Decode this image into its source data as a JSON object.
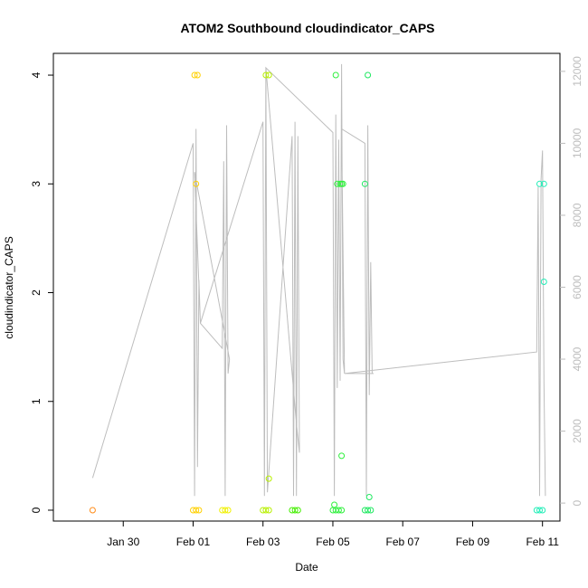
{
  "chart_data": {
    "type": "scatter",
    "title": "ATOM2 Southbound cloudindicator_CAPS",
    "xlabel": "Date",
    "ylabel": "cloudindicator_CAPS",
    "x_axis_type": "date",
    "xlim": [
      "2024-01-28T00:00",
      "2024-02-11T12:00"
    ],
    "x_ticks": [
      {
        "date": "2024-01-30",
        "label": "Jan 30"
      },
      {
        "date": "2024-02-01",
        "label": "Feb 01"
      },
      {
        "date": "2024-02-03",
        "label": "Feb 03"
      },
      {
        "date": "2024-02-05",
        "label": "Feb 05"
      },
      {
        "date": "2024-02-07",
        "label": "Feb 07"
      },
      {
        "date": "2024-02-09",
        "label": "Feb 09"
      },
      {
        "date": "2024-02-11",
        "label": "Feb 11"
      }
    ],
    "ylim": [
      -0.1,
      4.2
    ],
    "y_ticks": [
      0,
      1,
      2,
      3,
      4
    ],
    "y2_ticks": [
      0,
      2000,
      4000,
      6000,
      8000,
      10000,
      12000
    ],
    "y2lim": [
      -500,
      12500
    ],
    "grid": false,
    "points": [
      {
        "x": "2024-01-29T03:00",
        "y": 0,
        "color": "#ff8c1a"
      },
      {
        "x": "2024-02-01T00:00",
        "y": 0,
        "color": "#ffd000"
      },
      {
        "x": "2024-02-01T02:00",
        "y": 0,
        "color": "#ffd000"
      },
      {
        "x": "2024-02-01T04:00",
        "y": 0,
        "color": "#ffd000"
      },
      {
        "x": "2024-02-01T01:00",
        "y": 4,
        "color": "#ffd000"
      },
      {
        "x": "2024-02-01T03:00",
        "y": 4,
        "color": "#ffd000"
      },
      {
        "x": "2024-02-01T02:00",
        "y": 3,
        "color": "#ffd000"
      },
      {
        "x": "2024-02-01T20:00",
        "y": 0,
        "color": "#f0f000"
      },
      {
        "x": "2024-02-01T22:00",
        "y": 0,
        "color": "#f0f000"
      },
      {
        "x": "2024-02-02T00:00",
        "y": 0,
        "color": "#f0f000"
      },
      {
        "x": "2024-02-03T00:00",
        "y": 0,
        "color": "#b8f000"
      },
      {
        "x": "2024-02-03T02:00",
        "y": 0,
        "color": "#b8f000"
      },
      {
        "x": "2024-02-03T04:00",
        "y": 0,
        "color": "#b8f000"
      },
      {
        "x": "2024-02-03T02:00",
        "y": 4,
        "color": "#b8f000"
      },
      {
        "x": "2024-02-03T04:00",
        "y": 4,
        "color": "#b8f000"
      },
      {
        "x": "2024-02-03T04:00",
        "y": 0.29,
        "color": "#b8f000"
      },
      {
        "x": "2024-02-03T20:00",
        "y": 0,
        "color": "#44ee00"
      },
      {
        "x": "2024-02-03T22:00",
        "y": 0,
        "color": "#44ee00"
      },
      {
        "x": "2024-02-04T00:00",
        "y": 0,
        "color": "#44ee00"
      },
      {
        "x": "2024-02-05T00:00",
        "y": 0,
        "color": "#2ef03c"
      },
      {
        "x": "2024-02-05T02:00",
        "y": 0,
        "color": "#2ef03c"
      },
      {
        "x": "2024-02-05T04:00",
        "y": 0,
        "color": "#2ef03c"
      },
      {
        "x": "2024-02-05T06:00",
        "y": 0,
        "color": "#2ef03c"
      },
      {
        "x": "2024-02-05T01:00",
        "y": 0.05,
        "color": "#2ef03c"
      },
      {
        "x": "2024-02-05T02:00",
        "y": 4,
        "color": "#2ef03c"
      },
      {
        "x": "2024-02-05T03:00",
        "y": 3,
        "color": "#2ef03c"
      },
      {
        "x": "2024-02-05T05:00",
        "y": 3,
        "color": "#2ef03c"
      },
      {
        "x": "2024-02-05T06:00",
        "y": 3,
        "color": "#2ef03c"
      },
      {
        "x": "2024-02-05T07:00",
        "y": 3,
        "color": "#2ef03c"
      },
      {
        "x": "2024-02-05T06:00",
        "y": 0.5,
        "color": "#2ef03c"
      },
      {
        "x": "2024-02-05T22:00",
        "y": 0,
        "color": "#1ee860"
      },
      {
        "x": "2024-02-06T00:00",
        "y": 0,
        "color": "#1ee860"
      },
      {
        "x": "2024-02-06T02:00",
        "y": 0,
        "color": "#1ee860"
      },
      {
        "x": "2024-02-05T22:00",
        "y": 3,
        "color": "#1ee860"
      },
      {
        "x": "2024-02-06T00:00",
        "y": 4,
        "color": "#1ee860"
      },
      {
        "x": "2024-02-06T01:00",
        "y": 0.12,
        "color": "#1ee860"
      },
      {
        "x": "2024-02-10T20:00",
        "y": 0,
        "color": "#22eeb8"
      },
      {
        "x": "2024-02-10T22:00",
        "y": 0,
        "color": "#22eeb8"
      },
      {
        "x": "2024-02-11T00:00",
        "y": 0,
        "color": "#22eeb8"
      },
      {
        "x": "2024-02-10T22:00",
        "y": 3,
        "color": "#22eeb8"
      },
      {
        "x": "2024-02-11T01:00",
        "y": 3,
        "color": "#22eeb8"
      },
      {
        "x": "2024-02-11T01:00",
        "y": 2.1,
        "color": "#22eeb8"
      }
    ],
    "secondary_line": {
      "axis": "right",
      "color": "#bdbdbd",
      "points": [
        [
          "2024-01-29T03:00",
          700
        ],
        [
          "2024-02-01T00:00",
          10000
        ],
        [
          "2024-02-01T01:00",
          200
        ],
        [
          "2024-02-01T02:00",
          10400
        ],
        [
          "2024-02-01T03:00",
          1000
        ],
        [
          "2024-02-01T04:00",
          6200
        ],
        [
          "2024-02-01T05:00",
          5000
        ],
        [
          "2024-02-01T20:00",
          4300
        ],
        [
          "2024-02-01T21:00",
          9500
        ],
        [
          "2024-02-01T22:00",
          200
        ],
        [
          "2024-02-01T23:00",
          10500
        ],
        [
          "2024-02-02T00:00",
          3600
        ],
        [
          "2024-02-02T01:00",
          4000
        ],
        [
          "2024-02-01T01:00",
          9200
        ],
        [
          "2024-02-01T05:00",
          5000
        ],
        [
          "2024-02-03T00:00",
          10600
        ],
        [
          "2024-02-03T01:00",
          200
        ],
        [
          "2024-02-03T02:00",
          12100
        ],
        [
          "2024-02-03T03:00",
          300
        ],
        [
          "2024-02-03T20:00",
          10200
        ],
        [
          "2024-02-03T21:00",
          200
        ],
        [
          "2024-02-03T22:00",
          10600
        ],
        [
          "2024-02-03T23:00",
          200
        ],
        [
          "2024-02-04T00:00",
          10200
        ],
        [
          "2024-02-04T01:00",
          1400
        ],
        [
          "2024-02-03T23:00",
          2200
        ],
        [
          "2024-02-03T02:00",
          12100
        ],
        [
          "2024-02-05T00:00",
          10300
        ],
        [
          "2024-02-05T01:00",
          200
        ],
        [
          "2024-02-05T02:00",
          10800
        ],
        [
          "2024-02-05T03:00",
          3200
        ],
        [
          "2024-02-05T04:00",
          10100
        ],
        [
          "2024-02-05T05:00",
          3400
        ],
        [
          "2024-02-05T06:00",
          12200
        ],
        [
          "2024-02-05T07:00",
          4000
        ],
        [
          "2024-02-05T08:00",
          3600
        ],
        [
          "2024-02-05T06:00",
          10400
        ],
        [
          "2024-02-05T22:00",
          10000
        ],
        [
          "2024-02-05T23:00",
          200
        ],
        [
          "2024-02-06T00:00",
          10500
        ],
        [
          "2024-02-06T01:00",
          3000
        ],
        [
          "2024-02-06T02:00",
          6700
        ],
        [
          "2024-02-06T03:00",
          3600
        ],
        [
          "2024-02-06T04:00",
          3600
        ],
        [
          "2024-02-05T08:00",
          3600
        ],
        [
          "2024-02-10T20:00",
          4200
        ],
        [
          "2024-02-10T21:00",
          8800
        ],
        [
          "2024-02-10T22:00",
          200
        ],
        [
          "2024-02-10T23:00",
          9000
        ],
        [
          "2024-02-11T00:00",
          9800
        ],
        [
          "2024-02-11T01:00",
          3400
        ],
        [
          "2024-02-11T02:00",
          200
        ]
      ]
    }
  }
}
